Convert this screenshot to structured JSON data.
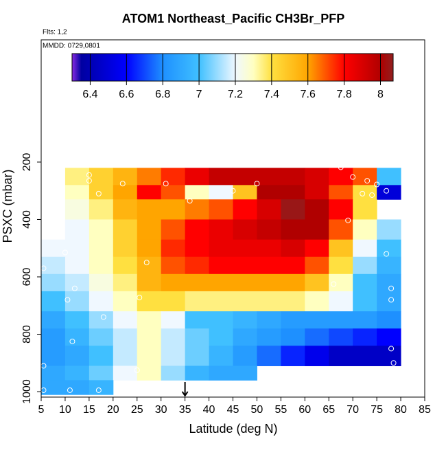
{
  "chart_data": {
    "type": "heatmap",
    "title": "ATOM1 Northeast_Pacific CH3Br_PFP",
    "flights": "Flts: 1,2",
    "dates": "MMDD: 0729,0801",
    "x_label": "Latitude (deg N)",
    "y_label": "PSXC (mbar)",
    "xlim": [
      5,
      85
    ],
    "xticks": [
      5,
      10,
      15,
      20,
      25,
      30,
      35,
      40,
      45,
      50,
      55,
      60,
      65,
      70,
      75,
      80,
      85
    ],
    "ylim": [
      1019,
      -226
    ],
    "yticks": [
      200,
      400,
      600,
      800,
      1000
    ],
    "x_edges": [
      5,
      10,
      15,
      20,
      25,
      30,
      35,
      40,
      45,
      50,
      55,
      60,
      65,
      70,
      75,
      80
    ],
    "y_edges": [
      220,
      280,
      330,
      400,
      470,
      530,
      590,
      650,
      720,
      780,
      840,
      910,
      960,
      1010
    ],
    "values": [
      [
        null,
        7.35,
        7.45,
        7.55,
        7.65,
        7.75,
        7.85,
        7.95,
        7.95,
        7.95,
        7.95,
        7.9,
        7.8,
        7.7,
        7.0
      ],
      [
        null,
        7.3,
        7.45,
        7.6,
        7.8,
        7.7,
        7.3,
        7.2,
        7.5,
        8.0,
        8.0,
        7.9,
        7.7,
        7.4,
        6.5
      ],
      [
        null,
        7.25,
        7.35,
        7.55,
        7.6,
        7.6,
        7.65,
        7.7,
        7.8,
        7.9,
        8.05,
        8.0,
        7.8,
        7.4,
        null
      ],
      [
        null,
        7.2,
        7.3,
        7.45,
        7.6,
        7.7,
        7.8,
        7.85,
        7.9,
        7.95,
        8.0,
        8.0,
        7.7,
        7.3,
        7.1
      ],
      [
        7.2,
        7.2,
        7.3,
        7.45,
        7.6,
        7.75,
        7.8,
        7.85,
        7.85,
        7.85,
        7.9,
        7.8,
        7.5,
        7.2,
        7.0
      ],
      [
        7.15,
        7.2,
        7.3,
        7.4,
        7.55,
        7.7,
        7.75,
        7.8,
        7.8,
        7.8,
        7.8,
        7.7,
        7.4,
        7.1,
        6.95
      ],
      [
        7.1,
        7.15,
        7.25,
        7.35,
        7.55,
        7.6,
        7.6,
        7.6,
        7.6,
        7.6,
        7.6,
        7.5,
        7.3,
        7.0,
        6.9
      ],
      [
        7.0,
        7.1,
        7.2,
        7.3,
        7.4,
        7.4,
        7.35,
        7.35,
        7.35,
        7.35,
        7.35,
        7.3,
        7.2,
        7.0,
        6.9
      ],
      [
        6.9,
        7.0,
        7.1,
        7.2,
        7.3,
        7.2,
        7.0,
        7.0,
        6.95,
        6.9,
        6.85,
        6.85,
        6.85,
        6.85,
        6.8
      ],
      [
        6.85,
        6.95,
        7.05,
        7.15,
        7.3,
        7.15,
        7.05,
        7.0,
        6.9,
        6.85,
        6.8,
        6.75,
        6.7,
        6.65,
        6.6
      ],
      [
        6.85,
        6.9,
        7.0,
        7.15,
        7.3,
        7.15,
        7.05,
        6.95,
        6.85,
        6.75,
        6.65,
        6.55,
        6.45,
        6.45,
        6.45
      ],
      [
        6.9,
        6.95,
        7.05,
        7.2,
        7.3,
        7.1,
        6.95,
        6.9,
        6.9,
        null,
        null,
        null,
        null,
        null,
        null
      ],
      [
        6.9,
        6.9,
        6.95,
        null,
        null,
        null,
        null,
        null,
        null,
        null,
        null,
        null,
        null,
        null,
        null
      ]
    ],
    "samples": {
      "x": [
        15,
        15,
        27.5,
        22,
        31,
        17,
        36,
        45,
        50,
        67.5,
        70,
        73,
        75,
        72,
        69,
        74,
        77,
        77,
        77,
        10,
        27,
        5.5,
        12,
        78,
        66,
        25.5,
        10.5,
        78,
        18,
        11.5,
        5.5,
        25,
        78,
        78.5,
        5.5,
        11,
        17
      ],
      "y": [
        245,
        265,
        200,
        275,
        275,
        310,
        335,
        300,
        275,
        218,
        252,
        265,
        278,
        310,
        403,
        315,
        300,
        390,
        520,
        515,
        550,
        570,
        640,
        640,
        625,
        672,
        680,
        680,
        740,
        825,
        910,
        925,
        850,
        900,
        995,
        995,
        995
      ]
    },
    "marker_lat": 35,
    "clim": [
      6.3,
      8.07
    ],
    "colorbar_ticks": [
      6.4,
      6.6,
      6.8,
      7.0,
      7.2,
      7.4,
      7.6,
      7.8,
      8.0
    ],
    "colorscale": [
      [
        6.3,
        "#8a2be2"
      ],
      [
        6.35,
        "#0000a0"
      ],
      [
        6.6,
        "#0000ff"
      ],
      [
        6.8,
        "#1e90ff"
      ],
      [
        7.0,
        "#40c0ff"
      ],
      [
        7.2,
        "#f0f8ff"
      ],
      [
        7.3,
        "#ffffc0"
      ],
      [
        7.4,
        "#ffe040"
      ],
      [
        7.6,
        "#ffa500"
      ],
      [
        7.8,
        "#ff0000"
      ],
      [
        8.0,
        "#b00000"
      ],
      [
        8.07,
        "#902020"
      ]
    ]
  }
}
